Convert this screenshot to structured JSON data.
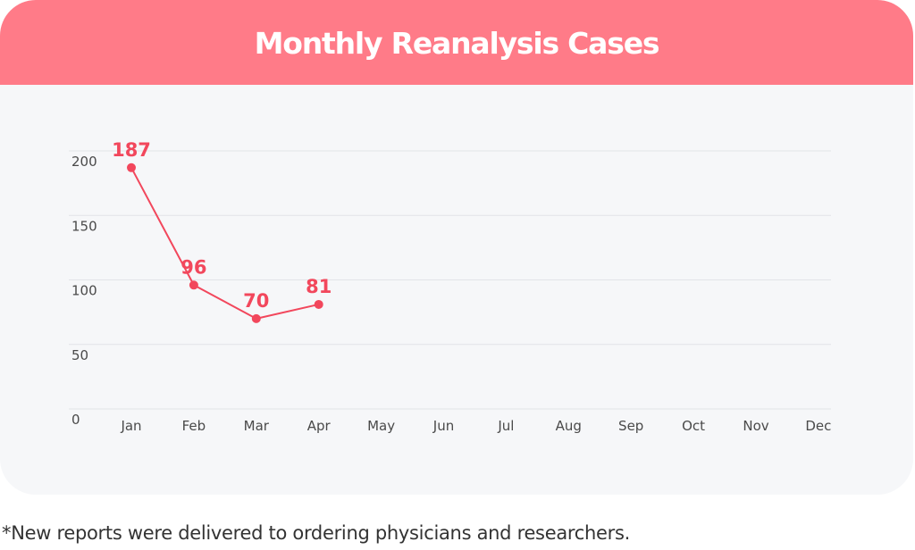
{
  "header": {
    "title": "Monthly Reanalysis Cases"
  },
  "footnote": "*New reports were delivered to ordering physicians and researchers.",
  "colors": {
    "header_bg": "#ff7b88",
    "card_bg": "#f6f7f9",
    "line": "#f2475c",
    "grid": "#e2e4e8"
  },
  "chart_data": {
    "type": "line",
    "title": "Monthly Reanalysis Cases",
    "categories": [
      "Jan",
      "Feb",
      "Mar",
      "Apr",
      "May",
      "Jun",
      "Jul",
      "Aug",
      "Sep",
      "Oct",
      "Nov",
      "Dec"
    ],
    "series": [
      {
        "values": [
          187,
          96,
          70,
          81,
          null,
          null,
          null,
          null,
          null,
          null,
          null,
          null
        ]
      }
    ],
    "yticks": [
      0,
      50,
      100,
      150,
      200
    ],
    "ylim": [
      0,
      200
    ],
    "grid": true,
    "data_labels": true,
    "legend": "none"
  }
}
